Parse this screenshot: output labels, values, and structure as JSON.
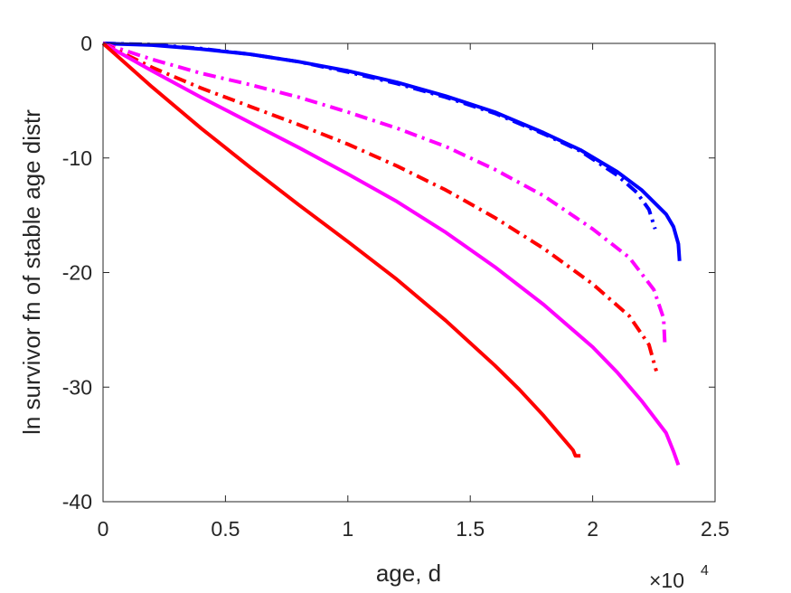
{
  "chart_data": {
    "type": "line",
    "xlabel": "age, d",
    "ylabel": "ln survivor fn of stable age distr",
    "x_exponent_label": "×10",
    "x_exponent_power": "4",
    "xlim": [
      0,
      25000
    ],
    "ylim": [
      -40,
      0
    ],
    "x_ticks": [
      0,
      5000,
      10000,
      15000,
      20000,
      25000
    ],
    "x_tick_labels": [
      "0",
      "0.5",
      "1",
      "1.5",
      "2",
      "2.5"
    ],
    "y_ticks": [
      0,
      -10,
      -20,
      -30,
      -40
    ],
    "y_tick_labels": [
      "0",
      "-10",
      "-20",
      "-30",
      "-40"
    ],
    "grid": false,
    "series": [
      {
        "color": "#0000ff",
        "style": "solid",
        "x": [
          0,
          2000,
          4000,
          6000,
          8000,
          10000,
          12000,
          14000,
          16000,
          18000,
          19500,
          21000,
          22000,
          23000,
          23300,
          23500,
          23550
        ],
        "y": [
          0,
          -0.15,
          -0.5,
          -0.95,
          -1.6,
          -2.4,
          -3.4,
          -4.6,
          -6.0,
          -7.8,
          -9.3,
          -11.2,
          -12.8,
          -14.9,
          -16.0,
          -17.5,
          -19.0
        ]
      },
      {
        "color": "#0000ff",
        "style": "dashdot",
        "x": [
          0,
          2000,
          4000,
          6000,
          8000,
          10000,
          12000,
          14000,
          16000,
          18000,
          19500,
          21000,
          21800,
          22300,
          22550
        ],
        "y": [
          0,
          -0.1,
          -0.45,
          -0.95,
          -1.6,
          -2.5,
          -3.5,
          -4.7,
          -6.1,
          -7.9,
          -9.4,
          -11.5,
          -13.0,
          -14.5,
          -16.2
        ]
      },
      {
        "color": "#ff00ff",
        "style": "dashdot",
        "x": [
          0,
          2000,
          4000,
          6000,
          8000,
          10000,
          12000,
          14000,
          16000,
          18000,
          20000,
          21500,
          22500,
          22900,
          22950
        ],
        "y": [
          0,
          -1.4,
          -2.6,
          -3.6,
          -4.7,
          -6.0,
          -7.4,
          -9.0,
          -11.0,
          -13.3,
          -16.2,
          -18.7,
          -21.5,
          -24.0,
          -26.3
        ]
      },
      {
        "color": "#ff0000",
        "style": "dashdot",
        "x": [
          0,
          2000,
          4000,
          6000,
          8000,
          10000,
          12000,
          14000,
          16000,
          18000,
          20000,
          21500,
          22300,
          22600
        ],
        "y": [
          0,
          -2.1,
          -3.9,
          -5.5,
          -7.1,
          -8.8,
          -10.7,
          -12.8,
          -15.2,
          -17.9,
          -21.0,
          -23.8,
          -26.3,
          -28.6
        ]
      },
      {
        "color": "#ff00ff",
        "style": "solid",
        "x": [
          0,
          2000,
          4000,
          6000,
          8000,
          10000,
          12000,
          14000,
          16000,
          18000,
          20000,
          21000,
          22000,
          23000,
          23300,
          23500
        ],
        "y": [
          0,
          -2.4,
          -4.7,
          -6.9,
          -9.1,
          -11.4,
          -13.8,
          -16.5,
          -19.5,
          -22.8,
          -26.5,
          -28.7,
          -31.2,
          -34.0,
          -35.6,
          -36.8
        ]
      },
      {
        "color": "#ff0000",
        "style": "solid",
        "x": [
          0,
          2000,
          4000,
          6000,
          8000,
          10000,
          12000,
          14000,
          16000,
          17000,
          18000,
          18800,
          19200,
          19300,
          19500
        ],
        "y": [
          0,
          -3.8,
          -7.4,
          -10.8,
          -14.1,
          -17.3,
          -20.6,
          -24.2,
          -28.1,
          -30.2,
          -32.5,
          -34.5,
          -35.5,
          -36.0,
          -36.0
        ]
      }
    ]
  }
}
